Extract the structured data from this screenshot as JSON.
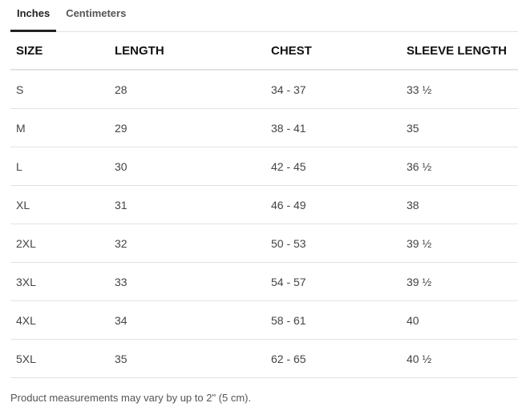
{
  "tabs": [
    {
      "label": "Inches",
      "active": true
    },
    {
      "label": "Centimeters",
      "active": false
    }
  ],
  "table": {
    "headers": [
      "SIZE",
      "LENGTH",
      "CHEST",
      "SLEEVE LENGTH"
    ],
    "rows": [
      [
        "S",
        "28",
        "34 - 37",
        "33 ½"
      ],
      [
        "M",
        "29",
        "38 - 41",
        "35"
      ],
      [
        "L",
        "30",
        "42 - 45",
        "36 ½"
      ],
      [
        "XL",
        "31",
        "46 - 49",
        "38"
      ],
      [
        "2XL",
        "32",
        "50 - 53",
        "39 ½"
      ],
      [
        "3XL",
        "33",
        "54 - 57",
        "39 ½"
      ],
      [
        "4XL",
        "34",
        "58 - 61",
        "40"
      ],
      [
        "5XL",
        "35",
        "62 - 65",
        "40 ½"
      ]
    ]
  },
  "footer": "Product measurements may vary by up to 2\" (5 cm)."
}
